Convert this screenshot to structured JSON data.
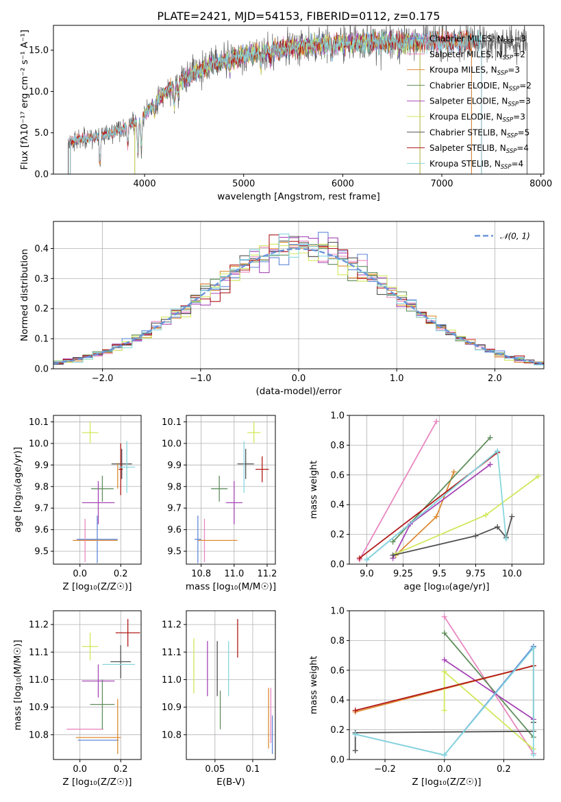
{
  "figure_title": "PLATE=2421, MJD=54153, FIBERID=0112, z=0.175",
  "chart_data": [
    {
      "id": "spectrum",
      "type": "line",
      "xlabel": "wavelength [Angstrom, rest frame]",
      "ylabel": "Flux [fλ10⁻¹⁷ erg cm⁻² s⁻¹ A⁻¹]",
      "xlim": [
        3080,
        8030
      ],
      "ylim": [
        0,
        18
      ],
      "xticks": [
        4000,
        5000,
        6000,
        7000,
        8000
      ],
      "yticks": [
        0,
        5,
        10,
        15
      ],
      "grid": false,
      "legend_position": "right",
      "continuum": {
        "x": [
          3230,
          3350,
          3500,
          3650,
          3800,
          3950,
          4050,
          4200,
          4350,
          4500,
          4700,
          4900,
          5100,
          5300,
          5500,
          5700,
          5900,
          6100,
          6300,
          6500,
          6700,
          7000,
          7200,
          7350,
          7500,
          7700,
          7860
        ],
        "y": [
          3.8,
          4.3,
          4.4,
          4.9,
          5.6,
          6.5,
          8.0,
          9.8,
          11.2,
          12.2,
          13.4,
          14.1,
          14.6,
          15.0,
          15.4,
          15.6,
          15.8,
          15.9,
          15.9,
          16.0,
          16.0,
          16.1,
          16.1,
          16.1,
          16.0,
          15.9,
          15.9
        ]
      },
      "absorption_features": [
        {
          "x": 3550,
          "depth": 3.4
        },
        {
          "x": 3830,
          "depth": 2.2
        },
        {
          "x": 3933,
          "depth": 3.8
        },
        {
          "x": 3968,
          "depth": 3.5
        },
        {
          "x": 4101,
          "depth": 1.5
        },
        {
          "x": 4300,
          "depth": 2.3
        },
        {
          "x": 4340,
          "depth": 1.6
        },
        {
          "x": 4861,
          "depth": 1.2
        },
        {
          "x": 5175,
          "depth": 1.8
        },
        {
          "x": 5270,
          "depth": 1.0
        },
        {
          "x": 5895,
          "depth": 1.6
        },
        {
          "x": 6563,
          "depth": 0.9
        }
      ],
      "series": [
        {
          "name": "Chabrier MILES, N_SSP=3",
          "label_main": "Chabrier MILES, N",
          "label_sub": "SSP",
          "label_end": "=3",
          "color": "#5f86d8",
          "x_range": [
            3250,
            7300
          ]
        },
        {
          "name": "Salpeter MILES, N_SSP=2",
          "label_main": "Salpeter MILES, N",
          "label_sub": "SSP",
          "label_end": "=2",
          "color": "#e987c0",
          "x_range": [
            3250,
            7300
          ]
        },
        {
          "name": "Kroupa MILES, N_SSP=3",
          "label_main": "Kroupa MILES, N",
          "label_sub": "SSP",
          "label_end": "=3",
          "color": "#de8a32",
          "x_range": [
            3250,
            7300
          ]
        },
        {
          "name": "Chabrier ELODIE, N_SSP=2",
          "label_main": "Chabrier ELODIE, N",
          "label_sub": "SSP",
          "label_end": "=2",
          "color": "#5f8d5b",
          "x_range": [
            3900,
            6780
          ]
        },
        {
          "name": "Salpeter ELODIE, N_SSP=3",
          "label_main": "Salpeter ELODIE, N",
          "label_sub": "SSP",
          "label_end": "=3",
          "color": "#a545b5",
          "x_range": [
            3900,
            6780
          ]
        },
        {
          "name": "Kroupa ELODIE, N_SSP=3",
          "label_main": "Kroupa ELODIE, N",
          "label_sub": "SSP",
          "label_end": "=3",
          "color": "#cfe85a",
          "x_range": [
            3900,
            6780
          ]
        },
        {
          "name": "Chabrier STELIB, N_SSP=5",
          "label_main": "Chabrier STELIB, N",
          "label_sub": "SSP",
          "label_end": "=5",
          "color": "#505050",
          "x_range": [
            3230,
            7860
          ]
        },
        {
          "name": "Salpeter STELIB, N_SSP=4",
          "label_main": "Salpeter STELIB, N",
          "label_sub": "SSP",
          "label_end": "=4",
          "color": "#b01818",
          "x_range": [
            3250,
            7400
          ]
        },
        {
          "name": "Kroupa STELIB, N_SSP=4",
          "label_main": "Kroupa STELIB, N",
          "label_sub": "SSP",
          "label_end": "=4",
          "color": "#86d7dd",
          "x_range": [
            3250,
            7400
          ]
        }
      ]
    },
    {
      "id": "residuals",
      "type": "histogram",
      "xlabel": "(data-model)/error",
      "ylabel": "Normed distribution",
      "xlim": [
        -2.5,
        2.5
      ],
      "ylim": [
        0,
        0.49
      ],
      "xticks": [
        -2,
        -1,
        0,
        1,
        2
      ],
      "yticks": [
        0.0,
        0.1,
        0.2,
        0.3,
        0.4
      ],
      "grid": true,
      "legend_position": "top-right",
      "reference_label": "𝒩(0, 1)",
      "reference_color": "#6a93d8",
      "bin_width": 0.1,
      "bin_range": [
        -2.5,
        2.5
      ]
    },
    {
      "id": "age-vs-Z",
      "type": "errorbar",
      "xlabel": "Z [log₁₀(Z/Z☉)]",
      "ylabel": "age  [log₁₀(age/yr)]",
      "xlim": [
        -0.13,
        0.3
      ],
      "ylim": [
        9.44,
        10.13
      ],
      "xticks": [
        0.0,
        0.2
      ],
      "yticks": [
        9.5,
        9.6,
        9.7,
        9.8,
        9.9,
        10.0,
        10.1
      ],
      "grid": true,
      "points": [
        {
          "series": "Chabrier MILES",
          "x": 0.085,
          "y": 9.555,
          "xerr": 0.1,
          "yerr": 0.11
        },
        {
          "series": "Salpeter MILES",
          "x": 0.025,
          "y": 9.55,
          "xerr": 0.05,
          "yerr": 0.1
        },
        {
          "series": "Kroupa MILES",
          "x": 0.075,
          "y": 9.55,
          "xerr": 0.11,
          "yerr": 0.0
        },
        {
          "series": "Chabrier ELODIE",
          "x": 0.11,
          "y": 9.79,
          "xerr": 0.055,
          "yerr": 0.06
        },
        {
          "series": "Salpeter ELODIE",
          "x": 0.09,
          "y": 9.725,
          "xerr": 0.08,
          "yerr": 0.1
        },
        {
          "series": "Kroupa ELODIE",
          "x": 0.05,
          "y": 10.05,
          "xerr": 0.04,
          "yerr": 0.05
        },
        {
          "series": "Chabrier STELIB",
          "x": 0.205,
          "y": 9.905,
          "xerr": 0.05,
          "yerr": 0.07
        },
        {
          "series": "Salpeter STELIB",
          "x": 0.2,
          "y": 9.88,
          "xerr": 0.01,
          "yerr": 0.12
        },
        {
          "series": "Kroupa STELIB",
          "x": 0.23,
          "y": 9.89,
          "xerr": 0.04,
          "yerr": 0.12
        },
        {
          "series": "Kroupa MILES",
          "x": 0.185,
          "y": 9.85,
          "xerr": 0.0,
          "yerr": 0.06
        }
      ]
    },
    {
      "id": "age-vs-mass",
      "type": "errorbar",
      "xlabel": "mass [log₁₀(M/M☉)]",
      "ylabel": "",
      "xlim": [
        10.71,
        11.25
      ],
      "ylim": [
        9.44,
        10.13
      ],
      "xticks": [
        10.8,
        11.0,
        11.2
      ],
      "yticks": [
        9.5,
        9.6,
        9.7,
        9.8,
        9.9,
        10.0,
        10.1
      ],
      "grid": true,
      "points": [
        {
          "series": "Chabrier MILES",
          "x": 10.78,
          "y": 9.555,
          "xerr": 0.02,
          "yerr": 0.11
        },
        {
          "series": "Salpeter MILES",
          "x": 10.82,
          "y": 9.55,
          "xerr": 0.0,
          "yerr": 0.1
        },
        {
          "series": "Kroupa MILES",
          "x": 10.9,
          "y": 9.55,
          "xerr": 0.12,
          "yerr": 0.0
        },
        {
          "series": "Chabrier ELODIE",
          "x": 10.91,
          "y": 9.79,
          "xerr": 0.05,
          "yerr": 0.06
        },
        {
          "series": "Salpeter ELODIE",
          "x": 11.0,
          "y": 9.725,
          "xerr": 0.05,
          "yerr": 0.1
        },
        {
          "series": "Kroupa ELODIE",
          "x": 11.12,
          "y": 10.05,
          "xerr": 0.04,
          "yerr": 0.05
        },
        {
          "series": "Chabrier STELIB",
          "x": 11.07,
          "y": 9.905,
          "xerr": 0.05,
          "yerr": 0.07
        },
        {
          "series": "Salpeter STELIB",
          "x": 11.17,
          "y": 9.88,
          "xerr": 0.04,
          "yerr": 0.06
        },
        {
          "series": "Kroupa STELIB",
          "x": 11.06,
          "y": 9.89,
          "xerr": 0.0,
          "yerr": 0.12
        },
        {
          "series": "Chabrier MILES",
          "x": 10.79,
          "y": 9.55,
          "xerr": 0.0,
          "yerr": 0.0
        }
      ]
    },
    {
      "id": "massweight-vs-age",
      "type": "line",
      "xlabel": "age  [log₁₀(age/yr)]",
      "ylabel": "mass weight",
      "xlim": [
        8.88,
        10.22
      ],
      "ylim": [
        0,
        1
      ],
      "xticks": [
        9.0,
        9.25,
        9.5,
        9.75,
        10.0
      ],
      "yticks": [
        0.0,
        0.2,
        0.4,
        0.6,
        0.8,
        1.0
      ],
      "grid": true,
      "series": [
        {
          "series": "Salpeter MILES",
          "x": [
            8.95,
            9.48
          ],
          "y": [
            0.03,
            0.96
          ]
        },
        {
          "series": "Kroupa MILES",
          "x": [
            9.2,
            9.48,
            9.6
          ],
          "y": [
            0.06,
            0.32,
            0.62
          ]
        },
        {
          "series": "Chabrier ELODIE",
          "x": [
            9.18,
            9.85
          ],
          "y": [
            0.15,
            0.85
          ]
        },
        {
          "series": "Salpeter ELODIE",
          "x": [
            9.18,
            9.3,
            9.85
          ],
          "y": [
            0.04,
            0.27,
            0.67
          ]
        },
        {
          "series": "Kroupa ELODIE",
          "x": [
            9.2,
            9.82,
            10.18
          ],
          "y": [
            0.07,
            0.33,
            0.59
          ]
        },
        {
          "series": "Chabrier STELIB",
          "x": [
            9.18,
            9.75,
            9.9,
            9.96,
            10.0
          ],
          "y": [
            0.06,
            0.19,
            0.25,
            0.18,
            0.32
          ]
        },
        {
          "series": "Salpeter STELIB",
          "x": [
            8.95,
            9.9
          ],
          "y": [
            0.04,
            0.75
          ]
        },
        {
          "series": "Chabrier MILES",
          "x": [
            9.0,
            9.9
          ],
          "y": [
            0.03,
            0.76
          ]
        },
        {
          "series": "Kroupa STELIB",
          "x": [
            9.0,
            9.9,
            9.96
          ],
          "y": [
            0.03,
            0.76,
            0.17
          ]
        }
      ]
    },
    {
      "id": "mass-vs-Z",
      "type": "errorbar",
      "xlabel": "Z [log₁₀(Z/Z☉)]",
      "ylabel": "mass [log₁₀(M/M☉)]",
      "xlim": [
        -0.13,
        0.3
      ],
      "ylim": [
        10.71,
        11.25
      ],
      "xticks": [
        0.0,
        0.2
      ],
      "yticks": [
        10.8,
        10.9,
        11.0,
        11.1,
        11.2
      ],
      "grid": true,
      "points": [
        {
          "series": "Chabrier MILES",
          "x": 0.09,
          "y": 10.78,
          "xerr": 0.1,
          "yerr": 0.0
        },
        {
          "series": "Salpeter MILES",
          "x": 0.025,
          "y": 10.82,
          "xerr": 0.09,
          "yerr": 0.0
        },
        {
          "series": "Kroupa MILES",
          "x": 0.09,
          "y": 10.79,
          "xerr": 0.11,
          "yerr": 0.0
        },
        {
          "series": "Chabrier ELODIE",
          "x": 0.11,
          "y": 10.91,
          "xerr": 0.06,
          "yerr": 0.09
        },
        {
          "series": "Salpeter ELODIE",
          "x": 0.09,
          "y": 10.995,
          "xerr": 0.08,
          "yerr": 0.06
        },
        {
          "series": "Kroupa ELODIE",
          "x": 0.05,
          "y": 11.12,
          "xerr": 0.04,
          "yerr": 0.05
        },
        {
          "series": "Chabrier STELIB",
          "x": 0.2,
          "y": 11.065,
          "xerr": 0.05,
          "yerr": 0.06
        },
        {
          "series": "Salpeter STELIB",
          "x": 0.235,
          "y": 11.17,
          "xerr": 0.06,
          "yerr": 0.05
        },
        {
          "series": "Kroupa STELIB",
          "x": 0.19,
          "y": 11.055,
          "xerr": 0.08,
          "yerr": 0.0
        },
        {
          "series": "Kroupa MILES",
          "x": 0.185,
          "y": 10.83,
          "xerr": 0.0,
          "yerr": 0.1
        }
      ]
    },
    {
      "id": "mass-vs-EBV",
      "type": "errorbar",
      "xlabel": "E(B-V)",
      "ylabel": "",
      "xlim": [
        0.012,
        0.13
      ],
      "ylim": [
        10.71,
        11.25
      ],
      "xticks": [
        0.05,
        0.1
      ],
      "yticks": [
        10.8,
        10.9,
        11.0,
        11.1,
        11.2
      ],
      "grid": true,
      "points": [
        {
          "series": "Kroupa ELODIE",
          "x": 0.022,
          "y": 11.05,
          "xerr": 0.0,
          "yerr": 0.1
        },
        {
          "series": "Salpeter ELODIE",
          "x": 0.04,
          "y": 11.04,
          "xerr": 0.0,
          "yerr": 0.1
        },
        {
          "series": "Chabrier STELIB",
          "x": 0.053,
          "y": 11.04,
          "xerr": 0.0,
          "yerr": 0.1
        },
        {
          "series": "Chabrier ELODIE",
          "x": 0.057,
          "y": 10.89,
          "xerr": 0.0,
          "yerr": 0.07
        },
        {
          "series": "Kroupa STELIB",
          "x": 0.068,
          "y": 11.04,
          "xerr": 0.0,
          "yerr": 0.1
        },
        {
          "series": "Salpeter STELIB",
          "x": 0.08,
          "y": 11.15,
          "xerr": 0.0,
          "yerr": 0.07
        },
        {
          "series": "Kroupa MILES",
          "x": 0.121,
          "y": 10.86,
          "xerr": 0.0,
          "yerr": 0.11
        },
        {
          "series": "Salpeter MILES",
          "x": 0.124,
          "y": 10.87,
          "xerr": 0.0,
          "yerr": 0.1
        },
        {
          "series": "Chabrier MILES",
          "x": 0.126,
          "y": 10.8,
          "xerr": 0.0,
          "yerr": 0.07
        }
      ]
    },
    {
      "id": "massweight-vs-Z",
      "type": "line",
      "xlabel": "Z [log₁₀(Z/Z☉)]",
      "ylabel": "mass weight",
      "xlim": [
        -0.32,
        0.335
      ],
      "ylim": [
        0,
        1
      ],
      "xticks": [
        -0.2,
        0.0,
        0.2
      ],
      "yticks": [
        0.0,
        0.2,
        0.4,
        0.6,
        0.8,
        1.0
      ],
      "grid": true,
      "series": [
        {
          "series": "Salpeter MILES",
          "x": [
            0.0,
            0.3
          ],
          "y": [
            0.96,
            0.04
          ]
        },
        {
          "series": "Kroupa MILES",
          "x": [
            -0.3,
            0.3
          ],
          "y": [
            0.32,
            0.63
          ]
        },
        {
          "series": "Chabrier ELODIE",
          "x": [
            0.0,
            0.3
          ],
          "y": [
            0.85,
            0.15
          ]
        },
        {
          "series": "Salpeter ELODIE",
          "x": [
            0.0,
            0.3
          ],
          "y": [
            0.67,
            0.27
          ]
        },
        {
          "series": "Kroupa ELODIE",
          "x": [
            0.0,
            0.0,
            0.3
          ],
          "y": [
            0.33,
            0.59,
            0.07
          ]
        },
        {
          "series": "Chabrier STELIB",
          "x": [
            -0.3,
            -0.3,
            0.3,
            0.3,
            0.3
          ],
          "y": [
            0.06,
            0.18,
            0.19,
            0.25,
            0.76
          ]
        },
        {
          "series": "Salpeter STELIB",
          "x": [
            -0.3,
            0.3
          ],
          "y": [
            0.33,
            0.63
          ]
        },
        {
          "series": "Chabrier MILES",
          "x": [
            -0.3,
            0.0,
            0.3
          ],
          "y": [
            0.17,
            0.03,
            0.76
          ]
        },
        {
          "series": "Kroupa STELIB",
          "x": [
            -0.3,
            0.0,
            0.3,
            0.3
          ],
          "y": [
            0.17,
            0.03,
            0.75,
            0.03
          ]
        }
      ]
    }
  ]
}
